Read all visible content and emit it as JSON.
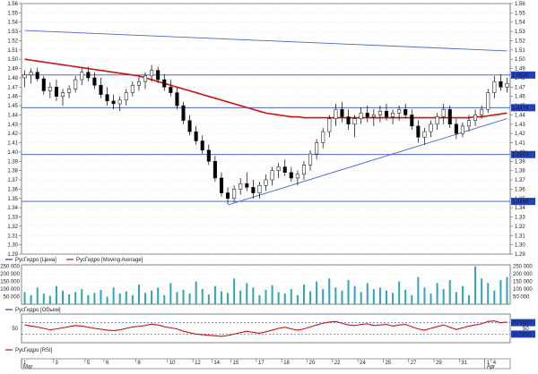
{
  "chart_data": [
    {
      "type": "candlestick",
      "pane": "price",
      "ylim": [
        1.29,
        1.56
      ],
      "yticks": [
        "1.56",
        "1.55",
        "1.54",
        "1.53",
        "1.52",
        "1.51",
        "1.50",
        "1.49",
        "1.48",
        "1.47",
        "1.46",
        "1.45",
        "1.44",
        "1.43",
        "1.42",
        "1.41",
        "1.40",
        "1.39",
        "1.38",
        "1.37",
        "1.36",
        "1.35",
        "1.34",
        "1.33",
        "1.32",
        "1.31",
        "1.30",
        "1.29"
      ],
      "bars": [
        [
          1.48,
          1.488,
          1.47,
          1.483
        ],
        [
          1.483,
          1.49,
          1.474,
          1.486
        ],
        [
          1.486,
          1.491,
          1.476,
          1.479
        ],
        [
          1.479,
          1.482,
          1.462,
          1.466
        ],
        [
          1.466,
          1.475,
          1.458,
          1.47
        ],
        [
          1.47,
          1.478,
          1.455,
          1.46
        ],
        [
          1.46,
          1.468,
          1.45,
          1.464
        ],
        [
          1.464,
          1.472,
          1.458,
          1.468
        ],
        [
          1.468,
          1.482,
          1.464,
          1.478
        ],
        [
          1.478,
          1.49,
          1.472,
          1.486
        ],
        [
          1.486,
          1.492,
          1.476,
          1.48
        ],
        [
          1.48,
          1.486,
          1.468,
          1.472
        ],
        [
          1.472,
          1.48,
          1.458,
          1.462
        ],
        [
          1.462,
          1.47,
          1.45,
          1.455
        ],
        [
          1.455,
          1.462,
          1.446,
          1.452
        ],
        [
          1.452,
          1.46,
          1.444,
          1.456
        ],
        [
          1.456,
          1.468,
          1.45,
          1.464
        ],
        [
          1.464,
          1.476,
          1.46,
          1.472
        ],
        [
          1.472,
          1.482,
          1.466,
          1.476
        ],
        [
          1.476,
          1.486,
          1.468,
          1.482
        ],
        [
          1.482,
          1.494,
          1.476,
          1.488
        ],
        [
          1.488,
          1.492,
          1.474,
          1.478
        ],
        [
          1.478,
          1.484,
          1.466,
          1.47
        ],
        [
          1.47,
          1.478,
          1.46,
          1.464
        ],
        [
          1.464,
          1.47,
          1.446,
          1.45
        ],
        [
          1.45,
          1.454,
          1.43,
          1.434
        ],
        [
          1.434,
          1.44,
          1.418,
          1.422
        ],
        [
          1.422,
          1.428,
          1.408,
          1.412
        ],
        [
          1.412,
          1.418,
          1.398,
          1.402
        ],
        [
          1.402,
          1.408,
          1.386,
          1.39
        ],
        [
          1.39,
          1.396,
          1.368,
          1.372
        ],
        [
          1.372,
          1.378,
          1.352,
          1.356
        ],
        [
          1.356,
          1.362,
          1.344,
          1.35
        ],
        [
          1.35,
          1.364,
          1.346,
          1.36
        ],
        [
          1.36,
          1.372,
          1.354,
          1.366
        ],
        [
          1.366,
          1.378,
          1.358,
          1.362
        ],
        [
          1.362,
          1.37,
          1.35,
          1.356
        ],
        [
          1.356,
          1.368,
          1.35,
          1.364
        ],
        [
          1.364,
          1.376,
          1.358,
          1.37
        ],
        [
          1.37,
          1.384,
          1.364,
          1.38
        ],
        [
          1.38,
          1.388,
          1.372,
          1.384
        ],
        [
          1.384,
          1.392,
          1.374,
          1.378
        ],
        [
          1.378,
          1.384,
          1.368,
          1.372
        ],
        [
          1.372,
          1.38,
          1.364,
          1.376
        ],
        [
          1.376,
          1.39,
          1.37,
          1.386
        ],
        [
          1.386,
          1.402,
          1.38,
          1.398
        ],
        [
          1.398,
          1.414,
          1.392,
          1.41
        ],
        [
          1.41,
          1.426,
          1.404,
          1.422
        ],
        [
          1.422,
          1.44,
          1.416,
          1.436
        ],
        [
          1.436,
          1.452,
          1.428,
          1.446
        ],
        [
          1.446,
          1.454,
          1.432,
          1.438
        ],
        [
          1.438,
          1.446,
          1.424,
          1.43
        ],
        [
          1.43,
          1.44,
          1.416,
          1.436
        ],
        [
          1.436,
          1.448,
          1.43,
          1.442
        ],
        [
          1.442,
          1.45,
          1.432,
          1.438
        ],
        [
          1.438,
          1.446,
          1.428,
          1.44
        ],
        [
          1.44,
          1.45,
          1.432,
          1.444
        ],
        [
          1.444,
          1.452,
          1.434,
          1.438
        ],
        [
          1.438,
          1.446,
          1.43,
          1.442
        ],
        [
          1.442,
          1.45,
          1.434,
          1.446
        ],
        [
          1.446,
          1.452,
          1.436,
          1.44
        ],
        [
          1.44,
          1.446,
          1.424,
          1.428
        ],
        [
          1.428,
          1.434,
          1.41,
          1.416
        ],
        [
          1.416,
          1.426,
          1.408,
          1.422
        ],
        [
          1.422,
          1.434,
          1.416,
          1.43
        ],
        [
          1.43,
          1.442,
          1.424,
          1.438
        ],
        [
          1.438,
          1.452,
          1.43,
          1.446
        ],
        [
          1.446,
          1.45,
          1.426,
          1.43
        ],
        [
          1.43,
          1.436,
          1.414,
          1.42
        ],
        [
          1.42,
          1.432,
          1.416,
          1.428
        ],
        [
          1.428,
          1.44,
          1.422,
          1.434
        ],
        [
          1.434,
          1.446,
          1.428,
          1.44
        ],
        [
          1.44,
          1.45,
          1.436,
          1.446
        ],
        [
          1.446,
          1.468,
          1.442,
          1.464
        ],
        [
          1.464,
          1.482,
          1.458,
          1.476
        ],
        [
          1.476,
          1.484,
          1.466,
          1.47
        ],
        [
          1.47,
          1.48,
          1.464,
          1.474
        ]
      ],
      "moving_average": [
        1.5,
        1.499,
        1.498,
        1.497,
        1.496,
        1.495,
        1.494,
        1.493,
        1.492,
        1.491,
        1.49,
        1.489,
        1.488,
        1.487,
        1.486,
        1.485,
        1.484,
        1.483,
        1.482,
        1.48,
        1.478,
        1.476,
        1.474,
        1.472,
        1.47,
        1.468,
        1.466,
        1.464,
        1.462,
        1.46,
        1.458,
        1.456,
        1.454,
        1.452,
        1.45,
        1.448,
        1.446,
        1.444,
        1.442,
        1.441,
        1.44,
        1.439,
        1.438,
        1.438,
        1.437,
        1.437,
        1.437,
        1.437,
        1.437,
        1.437,
        1.437,
        1.437,
        1.437,
        1.437,
        1.437,
        1.437,
        1.437,
        1.437,
        1.437,
        1.437,
        1.437,
        1.437,
        1.437,
        1.437,
        1.437,
        1.437,
        1.437,
        1.437,
        1.437,
        1.437,
        1.437,
        1.438,
        1.438,
        1.439,
        1.44,
        1.441,
        1.442
      ],
      "horizontal_levels": [
        {
          "value": 1.483,
          "label": "1.4830"
        },
        {
          "value": 1.4478,
          "label": "1.4478"
        },
        {
          "value": 1.3973,
          "label": "1.3973"
        },
        {
          "value": 1.3468,
          "label": "1.3468"
        }
      ],
      "trendlines": [
        {
          "x1": 0,
          "y1": 1.531,
          "x2": 76,
          "y2": 1.509
        },
        {
          "x1": 32,
          "y1": 1.343,
          "x2": 76,
          "y2": 1.436
        }
      ],
      "legend": [
        {
          "label": "РусГидро [Цена]",
          "color": "#1f3fa0"
        },
        {
          "label": "РусГидро [Moving Average]",
          "color": "#d01010"
        }
      ]
    },
    {
      "type": "bar",
      "pane": "volume",
      "ylim": [
        0,
        260000
      ],
      "yticks_left": [
        "250 000",
        "200 000",
        "150 000",
        "100 000",
        "50 000"
      ],
      "yticks_right": [
        "250 000",
        "200 000",
        "150 000",
        "100 000",
        "50 000"
      ],
      "values": [
        80000,
        60000,
        110000,
        70000,
        55000,
        120000,
        90000,
        65000,
        80000,
        100000,
        60000,
        75000,
        95000,
        50000,
        110000,
        70000,
        85000,
        60000,
        130000,
        75000,
        90000,
        110000,
        60000,
        140000,
        80000,
        95000,
        70000,
        150000,
        100000,
        65000,
        120000,
        85000,
        75000,
        170000,
        90000,
        140000,
        110000,
        60000,
        95000,
        125000,
        80000,
        70000,
        100000,
        60000,
        130000,
        85000,
        150000,
        100000,
        170000,
        110000,
        90000,
        160000,
        120000,
        80000,
        140000,
        100000,
        110000,
        90000,
        75000,
        150000,
        95000,
        60000,
        180000,
        110000,
        70000,
        140000,
        100000,
        160000,
        80000,
        120000,
        60000,
        250000,
        170000,
        140000,
        90000,
        160000,
        180000
      ],
      "legend": [
        {
          "label": "РусГидро [Объем]",
          "color": "#1f3fa0"
        }
      ]
    },
    {
      "type": "line",
      "pane": "rsi",
      "ylim": [
        0,
        100
      ],
      "ytick": "50",
      "levels": [
        {
          "value": 70.0,
          "label": "70.0000"
        },
        {
          "value": 30.0,
          "label": "30.0000"
        }
      ],
      "values": [
        62,
        58,
        55,
        50,
        45,
        48,
        52,
        56,
        60,
        58,
        54,
        50,
        47,
        44,
        42,
        45,
        50,
        55,
        57,
        60,
        65,
        62,
        56,
        52,
        48,
        40,
        35,
        30,
        28,
        26,
        24,
        22,
        25,
        30,
        35,
        40,
        36,
        33,
        38,
        44,
        50,
        54,
        48,
        44,
        48,
        55,
        62,
        68,
        72,
        74,
        68,
        62,
        60,
        64,
        66,
        60,
        62,
        64,
        58,
        62,
        64,
        56,
        48,
        44,
        50,
        56,
        62,
        54,
        46,
        52,
        58,
        62,
        66,
        74,
        76,
        70,
        72
      ],
      "legend": [
        {
          "label": "РусГидро [RSI]",
          "color": "#d01010"
        }
      ]
    }
  ],
  "x_axis": {
    "labels": [
      {
        "index": 0,
        "text": "1"
      },
      {
        "index": 5,
        "text": "3"
      },
      {
        "index": 10,
        "text": "5"
      },
      {
        "index": 13,
        "text": "6"
      },
      {
        "index": 18,
        "text": "8"
      },
      {
        "index": 23,
        "text": "10"
      },
      {
        "index": 27,
        "text": "12"
      },
      {
        "index": 30,
        "text": "14"
      },
      {
        "index": 33,
        "text": "15"
      },
      {
        "index": 37,
        "text": "17"
      },
      {
        "index": 41,
        "text": "18"
      },
      {
        "index": 45,
        "text": "20"
      },
      {
        "index": 49,
        "text": "22"
      },
      {
        "index": 53,
        "text": "24"
      },
      {
        "index": 57,
        "text": "25"
      },
      {
        "index": 61,
        "text": "27"
      },
      {
        "index": 65,
        "text": "29"
      },
      {
        "index": 69,
        "text": "31"
      },
      {
        "index": 73,
        "text": "1"
      },
      {
        "index": 74,
        "text": "4"
      }
    ],
    "month_labels": [
      {
        "index": 0,
        "text": "Mar"
      },
      {
        "index": 73,
        "text": "Apr"
      }
    ]
  },
  "colors": {
    "candle_up": "#ffffff",
    "candle_down": "#000000",
    "candle_outline": "#000000",
    "ma_line": "#d01010",
    "trend_line": "#4a64d0",
    "level_line": "#3050c0",
    "volume_bar": "#2fa6b8",
    "rsi_line": "#d01010",
    "level_label_bg": "#2040c0",
    "level_label_text": "#ffffff"
  }
}
